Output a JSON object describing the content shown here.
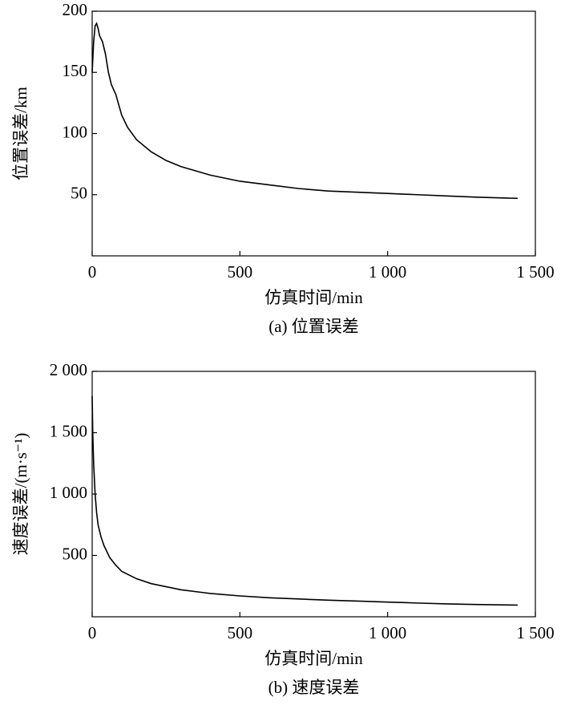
{
  "chart_data": [
    {
      "type": "line",
      "color": "#000000",
      "xlabel": "仿真时间/min",
      "ylabel": "位置误差/km",
      "caption": "(a) 位置误差",
      "x": [
        0,
        5,
        10,
        15,
        20,
        25,
        35,
        45,
        55,
        65,
        80,
        100,
        120,
        150,
        200,
        250,
        300,
        400,
        500,
        600,
        700,
        800,
        900,
        1000,
        1100,
        1200,
        1300,
        1440
      ],
      "values": [
        150,
        175,
        188,
        190,
        186,
        180,
        175,
        165,
        150,
        140,
        132,
        115,
        105,
        95,
        85,
        78,
        73,
        66,
        61,
        58,
        55,
        53,
        52,
        51,
        50,
        49,
        48,
        47
      ],
      "xlim": [
        0,
        1500
      ],
      "ylim": [
        0,
        200
      ],
      "xticks": [
        0,
        500,
        {
          "value": 1000,
          "label": "1 000"
        },
        {
          "value": 1500,
          "label": "1 500"
        }
      ],
      "yticks": [
        50,
        100,
        150,
        200
      ]
    },
    {
      "type": "line",
      "color": "#000000",
      "xlabel": "仿真时间/min",
      "ylabel": "速度误差/(m·s⁻¹)",
      "caption": "(b) 速度误差",
      "x": [
        0,
        2,
        5,
        10,
        15,
        20,
        30,
        40,
        60,
        80,
        100,
        150,
        200,
        300,
        400,
        500,
        600,
        700,
        800,
        900,
        1000,
        1100,
        1200,
        1300,
        1440
      ],
      "values": [
        1800,
        1500,
        1250,
        1000,
        850,
        750,
        650,
        580,
        480,
        420,
        370,
        310,
        270,
        220,
        190,
        170,
        155,
        145,
        135,
        128,
        120,
        112,
        105,
        100,
        95
      ],
      "xlim": [
        0,
        1500
      ],
      "ylim": [
        0,
        2000
      ],
      "xticks": [
        0,
        500,
        {
          "value": 1000,
          "label": "1 000"
        },
        {
          "value": 1500,
          "label": "1 500"
        }
      ],
      "yticks": [
        500,
        {
          "value": 1000,
          "label": "1 000"
        },
        {
          "value": 1500,
          "label": "1 500"
        },
        {
          "value": 2000,
          "label": "2 000"
        }
      ]
    }
  ]
}
